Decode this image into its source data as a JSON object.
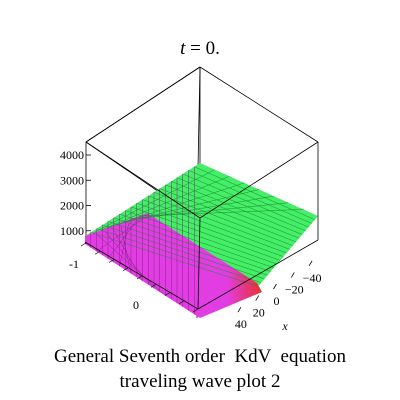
{
  "chart_data": {
    "type": "surface3d",
    "title_var": "t",
    "title_rest": " = 0.",
    "z_ticks": [
      1000,
      2000,
      3000,
      4000
    ],
    "z_tick_labels": [
      "1000",
      "2000",
      "3000",
      "4000"
    ],
    "x_ticks": [
      40,
      20,
      0,
      -20,
      -40
    ],
    "x_tick_labels": [
      "40",
      "20",
      "0",
      "−20",
      "−40"
    ],
    "x_label": "x",
    "y_tick_labels": [
      "-1",
      "0"
    ],
    "grid": false,
    "colors": {
      "low_surface": "#e23de3",
      "high_surface": "#44ee66",
      "low_surface_mesh": "#8a1f8f",
      "high_surface_mesh": "#1d8a34",
      "transition_blue": "#3b5fe6",
      "transition_red": "#e6322a",
      "box": "#000000"
    }
  },
  "caption": {
    "line1": "General Seventh order  KdV  equation",
    "line2": "traveling wave plot 2"
  }
}
